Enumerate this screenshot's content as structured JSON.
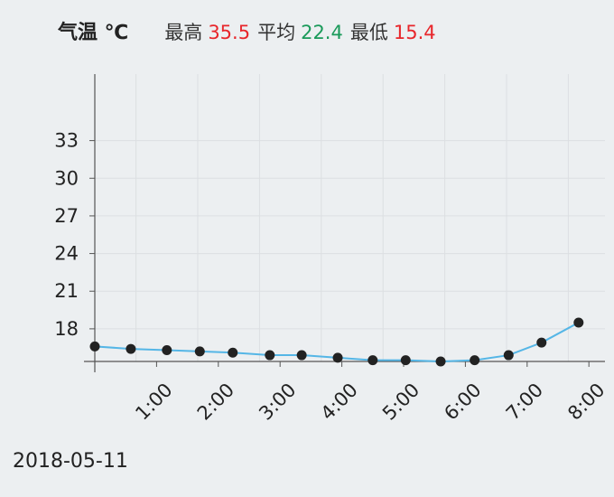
{
  "header": {
    "title": "气温 ℃",
    "max_label": "最高",
    "max_value": "35.5",
    "avg_label": "平均",
    "avg_value": "22.4",
    "min_label": "最低",
    "min_value": "15.4"
  },
  "date": "2018-05-11",
  "colors": {
    "line": "#55b6e6",
    "point": "#222222",
    "max": "#e8262b",
    "avg": "#1a9a5a",
    "min": "#e8262b",
    "grid": "#dcdfe2",
    "axis": "#555555"
  },
  "chart_data": {
    "type": "line",
    "title": "气温 ℃",
    "y_ticks": [
      18,
      21,
      24,
      27,
      30,
      33
    ],
    "ylim": [
      15.4,
      38.3
    ],
    "x_tick_labels": [
      "1:00",
      "2:00",
      "3:00",
      "4:00",
      "5:00",
      "6:00",
      "7:00",
      "8:00"
    ],
    "x_ticks": [
      60,
      120,
      180,
      240,
      300,
      360,
      420,
      480
    ],
    "xlim": [
      0,
      490
    ],
    "grid": true,
    "series": [
      {
        "x": [
          0,
          35,
          70,
          102,
          134,
          170,
          201,
          236,
          270,
          302,
          336,
          369,
          402,
          434,
          470
        ],
        "y": [
          16.6,
          16.4,
          16.3,
          16.2,
          16.1,
          15.9,
          15.9,
          15.7,
          15.5,
          15.5,
          15.4,
          15.5,
          15.9,
          16.9,
          18.5
        ]
      }
    ]
  }
}
